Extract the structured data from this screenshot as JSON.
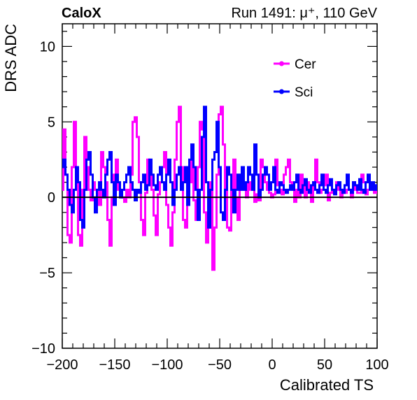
{
  "header": {
    "experiment": "CaloX",
    "run_info": "Run 1491:   μ⁺, 110 GeV"
  },
  "chart_data": {
    "type": "line",
    "xlabel": "Calibrated TS",
    "ylabel": "DRS ADC",
    "xlim": [
      -200,
      100
    ],
    "ylim": [
      -10,
      11.5
    ],
    "x_ticks": [
      -200,
      -150,
      -100,
      -50,
      0,
      50,
      100
    ],
    "x_tick_labels": [
      "−200",
      "−150",
      "−100",
      "−50",
      "0",
      "50",
      "100"
    ],
    "y_ticks": [
      -10,
      -5,
      0,
      5,
      10
    ],
    "y_tick_labels": [
      "−10",
      "−5",
      "0",
      "5",
      "10"
    ],
    "grid": false,
    "legend_position": "top-right",
    "zero_line": true,
    "series": [
      {
        "name": "Cer",
        "color": "#ff00ff",
        "x": [
          -200,
          -198,
          -196,
          -194,
          -192,
          -190,
          -188,
          -186,
          -184,
          -182,
          -180,
          -178,
          -176,
          -174,
          -172,
          -170,
          -168,
          -166,
          -164,
          -162,
          -160,
          -158,
          -156,
          -154,
          -152,
          -150,
          -148,
          -146,
          -144,
          -142,
          -140,
          -138,
          -136,
          -134,
          -132,
          -130,
          -128,
          -126,
          -124,
          -122,
          -120,
          -118,
          -116,
          -114,
          -112,
          -110,
          -108,
          -106,
          -104,
          -102,
          -100,
          -98,
          -96,
          -94,
          -92,
          -90,
          -88,
          -86,
          -84,
          -82,
          -80,
          -78,
          -76,
          -74,
          -72,
          -70,
          -68,
          -66,
          -64,
          -62,
          -60,
          -58,
          -56,
          -54,
          -52,
          -50,
          -48,
          -46,
          -44,
          -42,
          -40,
          -38,
          -36,
          -34,
          -32,
          -30,
          -28,
          -26,
          -24,
          -22,
          -20,
          -18,
          -16,
          -14,
          -12,
          -10,
          -8,
          -6,
          -4,
          -2,
          0,
          2,
          4,
          6,
          8,
          10,
          12,
          14,
          16,
          18,
          20,
          22,
          24,
          26,
          28,
          30,
          32,
          34,
          36,
          38,
          40,
          42,
          44,
          46,
          48,
          50,
          52,
          54,
          56,
          58,
          60,
          62,
          64,
          66,
          68,
          70,
          72,
          74,
          76,
          78,
          80,
          82,
          84,
          86,
          88,
          90,
          92,
          94,
          96,
          98,
          100
        ],
        "values": [
          0.5,
          4.5,
          1.5,
          -2.5,
          -3.0,
          2.0,
          5.0,
          1.0,
          -2.5,
          -3.2,
          0.5,
          4.0,
          2.0,
          0.5,
          -0.2,
          1.0,
          0.5,
          0.5,
          -0.5,
          3.0,
          2.0,
          1.0,
          -1.5,
          -3.2,
          0.0,
          1.5,
          2.5,
          0.5,
          0.2,
          0.0,
          -0.3,
          0.5,
          0.0,
          1.5,
          5.0,
          5.3,
          4.0,
          1.0,
          -1.5,
          -2.5,
          0.3,
          2.5,
          2.0,
          0.5,
          -1.2,
          -2.5,
          0.2,
          1.0,
          2.0,
          3.0,
          -0.5,
          -2.0,
          -3.2,
          -1.0,
          2.5,
          5.0,
          6.0,
          2.0,
          -1.5,
          -2.0,
          0.5,
          1.0,
          2.5,
          -0.2,
          -1.5,
          2.0,
          5.0,
          4.5,
          -1.0,
          -3.0,
          -2.0,
          1.0,
          -4.8,
          -2.0,
          1.5,
          5.5,
          6.0,
          3.5,
          0.5,
          -2.0,
          -2.2,
          0.5,
          2.5,
          0.0,
          -1.5,
          0.5,
          1.5,
          0.5,
          0.0,
          1.0,
          0.5,
          0.5,
          -0.3,
          0.2,
          -0.2,
          2.5,
          2.0,
          1.0,
          0.5,
          0.3,
          0.0,
          0.2,
          2.5,
          0.8,
          0.5,
          0.2,
          1.5,
          2.0,
          2.5,
          1.0,
          0.5,
          -0.3,
          0.5,
          0.0,
          1.5,
          0.8,
          0.0,
          1.0,
          0.5,
          -0.3,
          1.0,
          2.5,
          1.0,
          0.3,
          0.5,
          0.8,
          1.5,
          -0.2,
          0.3,
          0.5,
          0.3,
          1.0,
          0.5,
          0.0,
          0.5,
          0.3,
          0.5,
          0.5,
          0.0,
          1.0,
          0.5,
          0.3,
          0.3,
          1.5,
          1.0,
          0.2,
          0.5,
          0.8,
          0.5,
          0.3,
          0.5
        ]
      },
      {
        "name": "Sci",
        "color": "#0000ff",
        "x": [
          -200,
          -198,
          -196,
          -194,
          -192,
          -190,
          -188,
          -186,
          -184,
          -182,
          -180,
          -178,
          -176,
          -174,
          -172,
          -170,
          -168,
          -166,
          -164,
          -162,
          -160,
          -158,
          -156,
          -154,
          -152,
          -150,
          -148,
          -146,
          -144,
          -142,
          -140,
          -138,
          -136,
          -134,
          -132,
          -130,
          -128,
          -126,
          -124,
          -122,
          -120,
          -118,
          -116,
          -114,
          -112,
          -110,
          -108,
          -106,
          -104,
          -102,
          -100,
          -98,
          -96,
          -94,
          -92,
          -90,
          -88,
          -86,
          -84,
          -82,
          -80,
          -78,
          -76,
          -74,
          -72,
          -70,
          -68,
          -66,
          -64,
          -62,
          -60,
          -58,
          -56,
          -54,
          -52,
          -50,
          -48,
          -46,
          -44,
          -42,
          -40,
          -38,
          -36,
          -34,
          -32,
          -30,
          -28,
          -26,
          -24,
          -22,
          -20,
          -18,
          -16,
          -14,
          -12,
          -10,
          -8,
          -6,
          -4,
          -2,
          0,
          2,
          4,
          6,
          8,
          10,
          12,
          14,
          16,
          18,
          20,
          22,
          24,
          26,
          28,
          30,
          32,
          34,
          36,
          38,
          40,
          42,
          44,
          46,
          48,
          50,
          52,
          54,
          56,
          58,
          60,
          62,
          64,
          66,
          68,
          70,
          72,
          74,
          76,
          78,
          80,
          82,
          84,
          86,
          88,
          90,
          92,
          94,
          96,
          98,
          100
        ],
        "values": [
          2.0,
          2.5,
          1.5,
          0.5,
          -0.5,
          -1.0,
          0.5,
          2.0,
          1.0,
          -1.5,
          -2.0,
          0.5,
          2.5,
          3.0,
          1.5,
          0.0,
          -1.0,
          0.5,
          1.0,
          0.5,
          0.0,
          1.5,
          2.5,
          3.0,
          1.0,
          -0.5,
          1.5,
          1.0,
          0.0,
          0.5,
          1.0,
          1.5,
          2.0,
          1.0,
          0.5,
          -0.2,
          0.5,
          0.3,
          1.0,
          1.5,
          0.5,
          0.8,
          2.5,
          1.5,
          0.8,
          0.5,
          1.5,
          2.0,
          1.0,
          0.5,
          1.5,
          2.5,
          1.0,
          -0.5,
          0.5,
          1.5,
          2.0,
          0.5,
          1.0,
          2.0,
          -0.5,
          2.5,
          3.5,
          2.0,
          0.5,
          -1.5,
          0.5,
          4.0,
          6.0,
          1.0,
          -2.0,
          0.5,
          2.5,
          3.0,
          5.0,
          2.0,
          -1.0,
          -1.5,
          0.5,
          2.0,
          1.5,
          0.5,
          -1.0,
          0.5,
          1.5,
          0.5,
          2.0,
          0.5,
          1.0,
          2.0,
          1.5,
          0.5,
          3.5,
          1.5,
          0.0,
          0.5,
          1.5,
          2.0,
          1.5,
          0.5,
          1.0,
          2.0,
          0.5,
          0.3,
          1.0,
          0.8,
          0.5,
          0.3,
          0.5,
          0.8,
          0.5,
          1.0,
          1.5,
          0.5,
          0.3,
          0.8,
          1.2,
          0.5,
          0.3,
          0.8,
          1.0,
          0.5,
          0.3,
          0.8,
          1.5,
          0.5,
          0.3,
          0.8,
          1.2,
          0.5,
          0.2,
          0.8,
          1.0,
          0.5,
          0.3,
          0.8,
          1.5,
          0.5,
          0.3,
          1.0,
          0.8,
          0.5,
          1.2,
          0.5,
          0.3,
          1.0,
          1.5,
          0.5,
          1.0,
          0.5,
          0.8
        ]
      }
    ]
  }
}
